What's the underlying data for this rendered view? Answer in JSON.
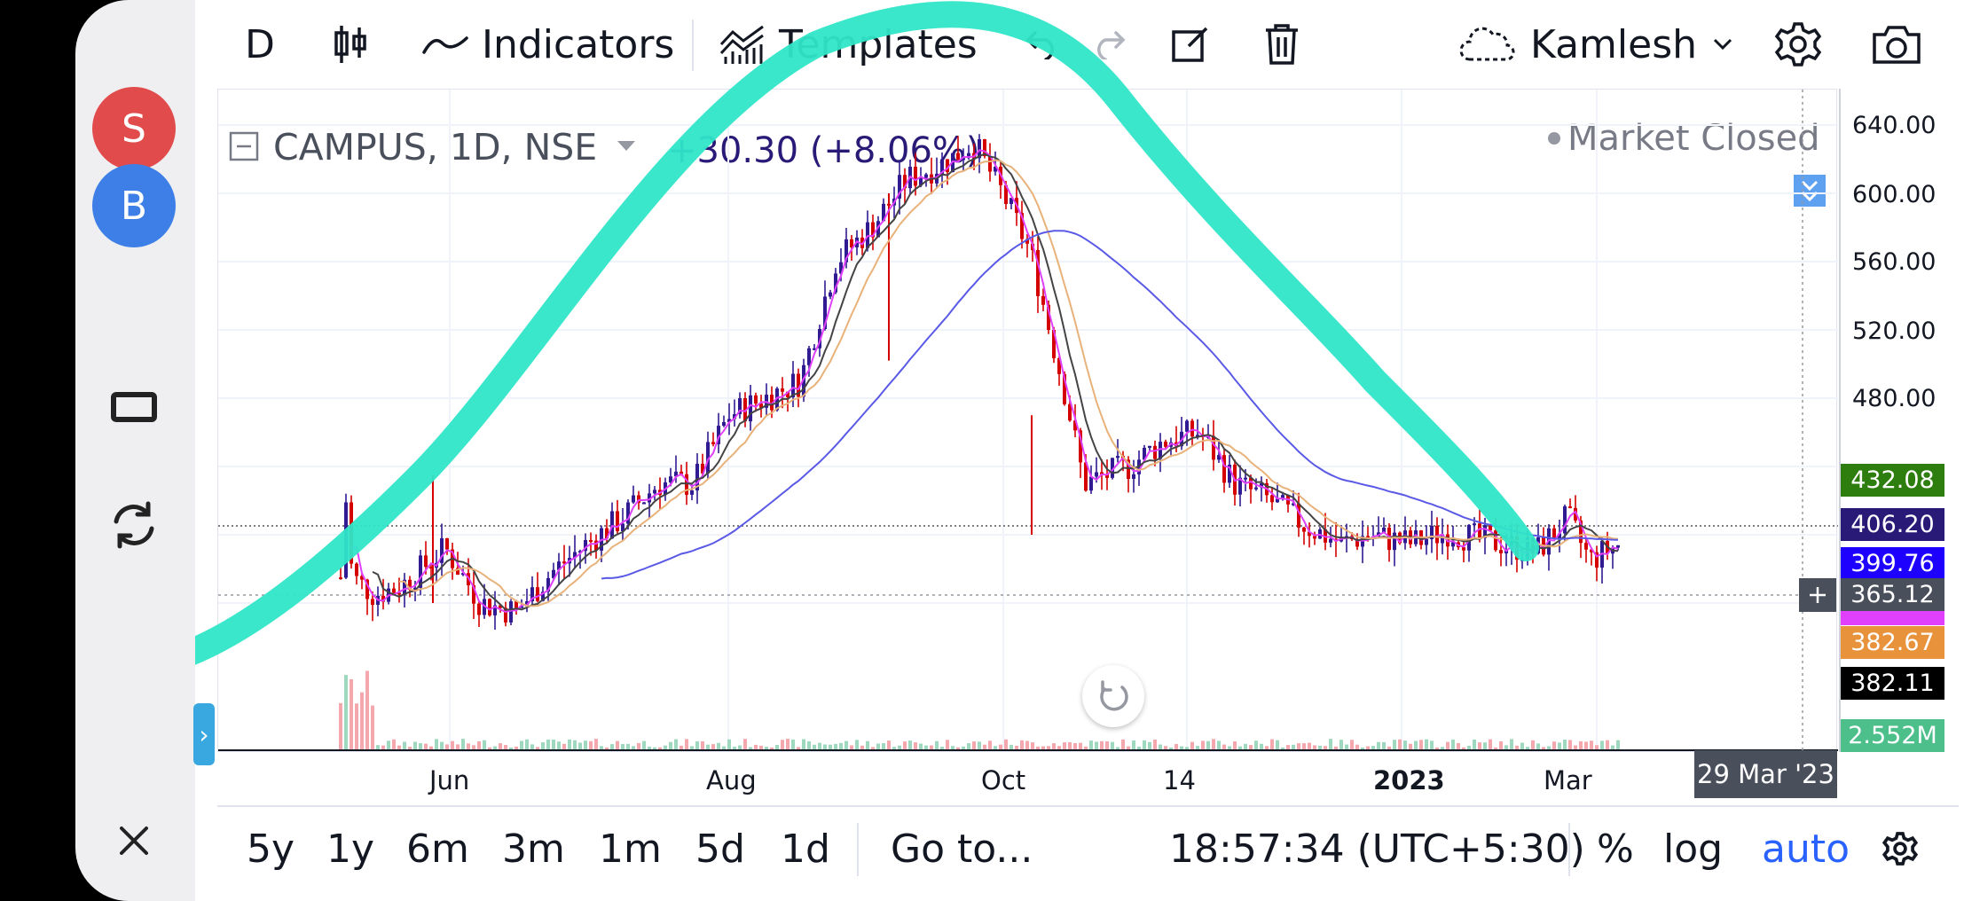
{
  "sidebar": {
    "avatars": [
      {
        "letter": "S",
        "color": "#e14b4b"
      },
      {
        "letter": "B",
        "color": "#3d7fe6"
      }
    ],
    "icons": [
      "window-icon",
      "refresh-icon",
      "close-icon"
    ],
    "expand_glyph": "›"
  },
  "toolbar": {
    "interval": "D",
    "indicators_label": "Indicators",
    "templates_label": "Templates",
    "account_label": "Kamlesh"
  },
  "legend": {
    "symbol": "CAMPUS, 1D, NSE",
    "change": "+30.30 (+8.06%)",
    "market_status": "Market Closed"
  },
  "price_axis": {
    "ticks": [
      "640.00",
      "600.00",
      "560.00",
      "520.00",
      "480.00"
    ],
    "labels": [
      {
        "value": "432.08",
        "color": "#2e7d0f"
      },
      {
        "value": "406.20",
        "color": "#2a1a78"
      },
      {
        "value": "399.76",
        "color": "#1e00ff"
      },
      {
        "value": "365.12",
        "color": "#4a4f5c"
      },
      {
        "value": "382.67",
        "color": "#e8923c"
      },
      {
        "value": "382.11",
        "color": "#000000"
      },
      {
        "value": "2.552M",
        "color": "#4cbf8a"
      }
    ]
  },
  "time_axis": {
    "ticks": [
      {
        "label": "Jun",
        "bold": false
      },
      {
        "label": "Aug",
        "bold": false
      },
      {
        "label": "Oct",
        "bold": false
      },
      {
        "label": "14",
        "bold": false
      },
      {
        "label": "2023",
        "bold": true
      },
      {
        "label": "Mar",
        "bold": false
      }
    ],
    "crosshair_date": "29 Mar '23"
  },
  "bottom_bar": {
    "ranges": [
      "5y",
      "1y",
      "6m",
      "3m",
      "1m",
      "5d",
      "1d"
    ],
    "goto_label": "Go to...",
    "clock": "18:57:34 (UTC+5:30)",
    "percent_label": "%",
    "log_label": "log",
    "auto_label": "auto",
    "auto_color": "#2962ff"
  },
  "colors": {
    "up_candle": "#311b92",
    "down_candle": "#d50000",
    "ma_magenta": "#e040fb",
    "ma_black": "#444444",
    "ma_orange": "#e8b27a",
    "ma_blue": "#5a5ae6",
    "scribble": "#2fe6c8"
  }
}
